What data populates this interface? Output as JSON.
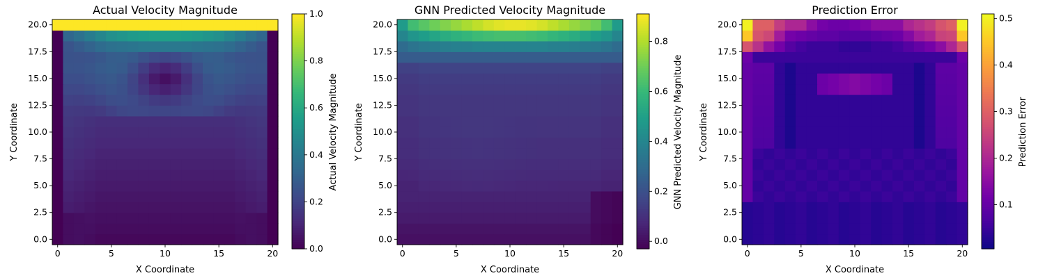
{
  "chart_data": [
    {
      "type": "heatmap",
      "title": "Actual Velocity Magnitude",
      "xlabel": "X Coordinate",
      "ylabel": "Y Coordinate",
      "colorbar_label": "Actual Velocity Magnitude",
      "colormap": "viridis",
      "grid_size": [
        21,
        21
      ],
      "x_range": [
        0,
        20
      ],
      "y_range": [
        0,
        20
      ],
      "x_ticks": [
        0,
        5,
        10,
        15,
        20
      ],
      "y_ticks": [
        0.0,
        2.5,
        5.0,
        7.5,
        10.0,
        12.5,
        15.0,
        17.5,
        20.0
      ],
      "x_tick_labels": [
        "0",
        "5",
        "10",
        "15",
        "20"
      ],
      "y_tick_labels": [
        "0.0",
        "2.5",
        "5.0",
        "7.5",
        "10.0",
        "12.5",
        "15.0",
        "17.5",
        "20.0"
      ],
      "color_range": [
        0.0,
        1.0
      ],
      "colorbar_ticks": [
        0.0,
        0.2,
        0.4,
        0.6,
        0.8,
        1.0
      ],
      "colorbar_tick_labels": [
        "0.0",
        "0.2",
        "0.4",
        "0.6",
        "0.8",
        "1.0"
      ],
      "z_top_row": 1.0,
      "z_row19_x": [
        0.0,
        0.33,
        0.37,
        0.42,
        0.46,
        0.5,
        0.52,
        0.54,
        0.55,
        0.56,
        0.56,
        0.56,
        0.55,
        0.54,
        0.52,
        0.5,
        0.46,
        0.42,
        0.37,
        0.33,
        0.0
      ],
      "z_row18_x": [
        0.0,
        0.26,
        0.29,
        0.32,
        0.35,
        0.37,
        0.38,
        0.39,
        0.4,
        0.4,
        0.4,
        0.4,
        0.4,
        0.39,
        0.38,
        0.37,
        0.35,
        0.32,
        0.29,
        0.26,
        0.0
      ],
      "z_side_walls": 0.0,
      "z_lower_interior_y": [
        0.02,
        0.03,
        0.04,
        0.05,
        0.06,
        0.07,
        0.08,
        0.09,
        0.1,
        0.11,
        0.12,
        0.13,
        0.14,
        0.16,
        0.18,
        0.2,
        0.22
      ],
      "z_vortex_core_center": [
        10,
        15
      ],
      "z_vortex_core_value": 0.04
    },
    {
      "type": "heatmap",
      "title": "GNN Predicted Velocity Magnitude",
      "xlabel": "X Coordinate",
      "ylabel": "Y Coordinate",
      "colorbar_label": "GNN Predicted Velocity Magnitude",
      "colormap": "viridis",
      "grid_size": [
        21,
        21
      ],
      "x_range": [
        0,
        20
      ],
      "y_range": [
        0,
        20
      ],
      "x_ticks": [
        0,
        5,
        10,
        15,
        20
      ],
      "y_ticks": [
        0.0,
        2.5,
        5.0,
        7.5,
        10.0,
        12.5,
        15.0,
        17.5,
        20.0
      ],
      "x_tick_labels": [
        "0",
        "5",
        "10",
        "15",
        "20"
      ],
      "y_tick_labels": [
        "0.0",
        "2.5",
        "5.0",
        "7.5",
        "10.0",
        "12.5",
        "15.0",
        "17.5",
        "20.0"
      ],
      "color_range": [
        -0.03,
        0.91
      ],
      "colorbar_ticks": [
        0.0,
        0.2,
        0.4,
        0.6,
        0.8
      ],
      "colorbar_tick_labels": [
        "0.0",
        "0.2",
        "0.4",
        "0.6",
        "0.8"
      ],
      "z_row20_x": [
        0.48,
        0.62,
        0.66,
        0.7,
        0.73,
        0.76,
        0.79,
        0.82,
        0.85,
        0.87,
        0.88,
        0.88,
        0.87,
        0.85,
        0.82,
        0.79,
        0.76,
        0.73,
        0.7,
        0.62,
        0.48
      ],
      "z_row19_x": [
        0.4,
        0.46,
        0.49,
        0.52,
        0.55,
        0.57,
        0.59,
        0.61,
        0.62,
        0.63,
        0.63,
        0.63,
        0.62,
        0.61,
        0.59,
        0.57,
        0.55,
        0.52,
        0.49,
        0.46,
        0.4
      ],
      "z_row18_x": [
        0.3,
        0.33,
        0.35,
        0.36,
        0.37,
        0.38,
        0.38,
        0.39,
        0.39,
        0.39,
        0.39,
        0.39,
        0.39,
        0.39,
        0.38,
        0.38,
        0.37,
        0.36,
        0.35,
        0.33,
        0.3
      ],
      "z_row17": 0.24,
      "z_lower_interior_y": [
        0.02,
        0.03,
        0.04,
        0.05,
        0.06,
        0.07,
        0.08,
        0.09,
        0.1,
        0.1,
        0.11,
        0.11,
        0.12,
        0.12,
        0.13,
        0.14,
        0.16
      ],
      "z_corner_dark": -0.02
    },
    {
      "type": "heatmap",
      "title": "Prediction Error",
      "xlabel": "X Coordinate",
      "ylabel": "Y Coordinate",
      "colorbar_label": "Prediction Error",
      "colormap": "plasma",
      "grid_size": [
        21,
        21
      ],
      "x_range": [
        0,
        20
      ],
      "y_range": [
        0,
        20
      ],
      "x_ticks": [
        0,
        5,
        10,
        15,
        20
      ],
      "y_ticks": [
        0.0,
        2.5,
        5.0,
        7.5,
        10.0,
        12.5,
        15.0,
        17.5,
        20.0
      ],
      "x_tick_labels": [
        "0",
        "5",
        "10",
        "15",
        "20"
      ],
      "y_tick_labels": [
        "0.0",
        "2.5",
        "5.0",
        "7.5",
        "10.0",
        "12.5",
        "15.0",
        "17.5",
        "20.0"
      ],
      "color_range": [
        0.005,
        0.51
      ],
      "colorbar_ticks": [
        0.1,
        0.2,
        0.3,
        0.4,
        0.5
      ],
      "colorbar_tick_labels": [
        "0.1",
        "0.2",
        "0.3",
        "0.4",
        "0.5"
      ],
      "z_row20_x": [
        0.5,
        0.3,
        0.3,
        0.24,
        0.2,
        0.2,
        0.15,
        0.12,
        0.11,
        0.11,
        0.12,
        0.13,
        0.15,
        0.15,
        0.15,
        0.2,
        0.22,
        0.24,
        0.28,
        0.3,
        0.5
      ],
      "z_row19_x": [
        0.45,
        0.28,
        0.26,
        0.18,
        0.12,
        0.11,
        0.1,
        0.09,
        0.09,
        0.08,
        0.08,
        0.08,
        0.09,
        0.1,
        0.11,
        0.14,
        0.18,
        0.2,
        0.25,
        0.26,
        0.45
      ],
      "z_row18_x": [
        0.28,
        0.22,
        0.16,
        0.12,
        0.08,
        0.06,
        0.05,
        0.05,
        0.05,
        0.04,
        0.04,
        0.04,
        0.05,
        0.05,
        0.06,
        0.08,
        0.1,
        0.12,
        0.15,
        0.2,
        0.28
      ],
      "z_row17": 0.05,
      "z_vortex_band_rows": [
        14,
        15
      ],
      "z_vortex_band_peak": 0.14,
      "z_background": 0.04,
      "z_side_band": 0.1
    }
  ]
}
